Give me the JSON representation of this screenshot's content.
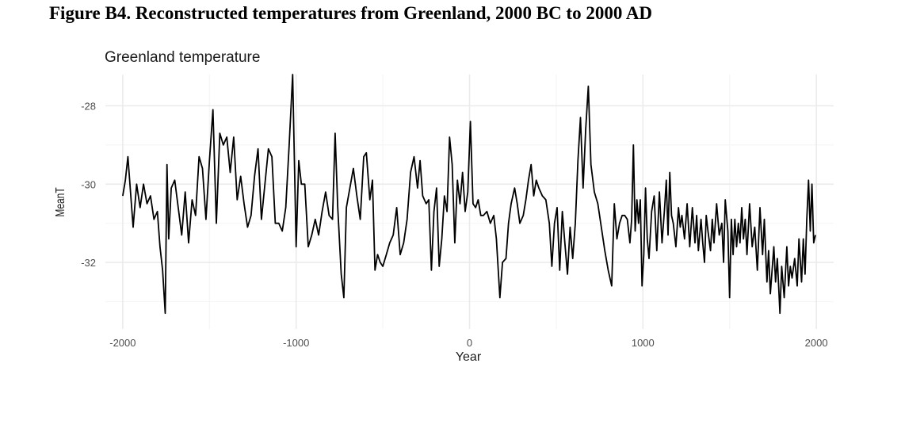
{
  "figure": {
    "caption": "Figure B4. Reconstructed temperatures from Greenland, 2000 BC to 2000 AD"
  },
  "chart_data": {
    "type": "line",
    "title": "Greenland temperature",
    "xlabel": "Year",
    "ylabel": "MeanT",
    "xlim": [
      -2100,
      2100
    ],
    "ylim": [
      -33.7,
      -27.2
    ],
    "x_ticks": [
      -2000,
      -1000,
      0,
      1000,
      2000
    ],
    "x_tick_labels": [
      "-2000",
      "-1000",
      "0",
      "1000",
      "2000"
    ],
    "y_ticks": [
      -28,
      -30,
      -32
    ],
    "y_tick_labels": [
      "-28",
      "-30",
      "-32"
    ],
    "grid": true,
    "legend": "none",
    "colors": {
      "line": "#000000",
      "grid_major": "#ebebeb",
      "grid_minor": "#f4f4f4",
      "background": "#ffffff"
    },
    "series": [
      {
        "name": "MeanT",
        "points": [
          [
            -2000,
            -30.3
          ],
          [
            -1985,
            -29.9
          ],
          [
            -1970,
            -29.3
          ],
          [
            -1955,
            -30.2
          ],
          [
            -1940,
            -31.1
          ],
          [
            -1920,
            -30.0
          ],
          [
            -1900,
            -30.6
          ],
          [
            -1880,
            -30.0
          ],
          [
            -1860,
            -30.5
          ],
          [
            -1840,
            -30.3
          ],
          [
            -1820,
            -30.9
          ],
          [
            -1800,
            -30.7
          ],
          [
            -1785,
            -31.6
          ],
          [
            -1770,
            -32.2
          ],
          [
            -1755,
            -33.3
          ],
          [
            -1745,
            -29.5
          ],
          [
            -1735,
            -31.4
          ],
          [
            -1720,
            -30.1
          ],
          [
            -1700,
            -29.9
          ],
          [
            -1680,
            -30.6
          ],
          [
            -1660,
            -31.3
          ],
          [
            -1640,
            -30.2
          ],
          [
            -1620,
            -31.5
          ],
          [
            -1600,
            -30.4
          ],
          [
            -1580,
            -30.8
          ],
          [
            -1560,
            -29.3
          ],
          [
            -1540,
            -29.6
          ],
          [
            -1520,
            -30.9
          ],
          [
            -1500,
            -29.4
          ],
          [
            -1480,
            -28.1
          ],
          [
            -1460,
            -31.0
          ],
          [
            -1440,
            -28.7
          ],
          [
            -1420,
            -29.0
          ],
          [
            -1400,
            -28.8
          ],
          [
            -1380,
            -29.7
          ],
          [
            -1360,
            -28.8
          ],
          [
            -1340,
            -30.4
          ],
          [
            -1320,
            -29.8
          ],
          [
            -1300,
            -30.5
          ],
          [
            -1280,
            -31.1
          ],
          [
            -1260,
            -30.8
          ],
          [
            -1240,
            -29.8
          ],
          [
            -1220,
            -29.1
          ],
          [
            -1200,
            -30.9
          ],
          [
            -1180,
            -30.0
          ],
          [
            -1160,
            -29.1
          ],
          [
            -1140,
            -29.3
          ],
          [
            -1120,
            -31.0
          ],
          [
            -1100,
            -31.0
          ],
          [
            -1080,
            -31.2
          ],
          [
            -1060,
            -30.6
          ],
          [
            -1040,
            -29.0
          ],
          [
            -1020,
            -27.2
          ],
          [
            -1000,
            -31.6
          ],
          [
            -985,
            -29.4
          ],
          [
            -970,
            -30.0
          ],
          [
            -950,
            -30.0
          ],
          [
            -930,
            -31.6
          ],
          [
            -910,
            -31.3
          ],
          [
            -890,
            -30.9
          ],
          [
            -870,
            -31.3
          ],
          [
            -850,
            -30.7
          ],
          [
            -830,
            -30.2
          ],
          [
            -810,
            -30.8
          ],
          [
            -790,
            -30.9
          ],
          [
            -775,
            -28.7
          ],
          [
            -760,
            -30.6
          ],
          [
            -740,
            -32.3
          ],
          [
            -725,
            -32.9
          ],
          [
            -710,
            -30.6
          ],
          [
            -690,
            -30.1
          ],
          [
            -670,
            -29.6
          ],
          [
            -650,
            -30.3
          ],
          [
            -630,
            -30.9
          ],
          [
            -610,
            -29.3
          ],
          [
            -595,
            -29.2
          ],
          [
            -575,
            -30.4
          ],
          [
            -560,
            -29.9
          ],
          [
            -545,
            -32.2
          ],
          [
            -530,
            -31.8
          ],
          [
            -515,
            -32.0
          ],
          [
            -500,
            -32.1
          ],
          [
            -480,
            -31.8
          ],
          [
            -460,
            -31.5
          ],
          [
            -440,
            -31.3
          ],
          [
            -420,
            -30.6
          ],
          [
            -400,
            -31.8
          ],
          [
            -380,
            -31.5
          ],
          [
            -360,
            -30.9
          ],
          [
            -340,
            -29.7
          ],
          [
            -320,
            -29.3
          ],
          [
            -300,
            -30.1
          ],
          [
            -285,
            -29.4
          ],
          [
            -270,
            -30.3
          ],
          [
            -250,
            -30.5
          ],
          [
            -235,
            -30.4
          ],
          [
            -220,
            -32.2
          ],
          [
            -205,
            -30.7
          ],
          [
            -190,
            -30.1
          ],
          [
            -175,
            -32.1
          ],
          [
            -160,
            -31.4
          ],
          [
            -145,
            -30.3
          ],
          [
            -130,
            -30.7
          ],
          [
            -115,
            -28.8
          ],
          [
            -100,
            -29.5
          ],
          [
            -85,
            -31.5
          ],
          [
            -70,
            -29.9
          ],
          [
            -55,
            -30.5
          ],
          [
            -40,
            -29.7
          ],
          [
            -25,
            -30.7
          ],
          [
            -10,
            -30.2
          ],
          [
            5,
            -28.4
          ],
          [
            20,
            -30.5
          ],
          [
            35,
            -30.6
          ],
          [
            50,
            -30.4
          ],
          [
            65,
            -30.8
          ],
          [
            80,
            -30.8
          ],
          [
            100,
            -30.7
          ],
          [
            120,
            -31.0
          ],
          [
            140,
            -30.8
          ],
          [
            155,
            -31.4
          ],
          [
            175,
            -32.9
          ],
          [
            190,
            -32.0
          ],
          [
            210,
            -31.9
          ],
          [
            225,
            -31.0
          ],
          [
            240,
            -30.5
          ],
          [
            260,
            -30.1
          ],
          [
            275,
            -30.5
          ],
          [
            290,
            -31.0
          ],
          [
            310,
            -30.8
          ],
          [
            325,
            -30.4
          ],
          [
            340,
            -29.9
          ],
          [
            355,
            -29.5
          ],
          [
            370,
            -30.3
          ],
          [
            385,
            -29.9
          ],
          [
            400,
            -30.1
          ],
          [
            420,
            -30.3
          ],
          [
            440,
            -30.4
          ],
          [
            460,
            -31.0
          ],
          [
            475,
            -32.1
          ],
          [
            490,
            -31.0
          ],
          [
            505,
            -30.6
          ],
          [
            520,
            -32.2
          ],
          [
            535,
            -30.7
          ],
          [
            550,
            -31.5
          ],
          [
            565,
            -32.3
          ],
          [
            580,
            -31.1
          ],
          [
            595,
            -31.9
          ],
          [
            610,
            -31.0
          ],
          [
            625,
            -29.4
          ],
          [
            640,
            -28.3
          ],
          [
            655,
            -30.1
          ],
          [
            670,
            -28.6
          ],
          [
            685,
            -27.5
          ],
          [
            700,
            -29.5
          ],
          [
            720,
            -30.2
          ],
          [
            740,
            -30.5
          ],
          [
            760,
            -31.1
          ],
          [
            780,
            -31.7
          ],
          [
            800,
            -32.2
          ],
          [
            820,
            -32.6
          ],
          [
            835,
            -30.5
          ],
          [
            850,
            -31.4
          ],
          [
            865,
            -31.0
          ],
          [
            880,
            -30.8
          ],
          [
            895,
            -30.8
          ],
          [
            910,
            -30.9
          ],
          [
            925,
            -31.5
          ],
          [
            935,
            -30.9
          ],
          [
            945,
            -29.0
          ],
          [
            955,
            -31.2
          ],
          [
            965,
            -30.4
          ],
          [
            975,
            -31.0
          ],
          [
            985,
            -30.4
          ],
          [
            995,
            -32.6
          ],
          [
            1005,
            -31.8
          ],
          [
            1015,
            -30.1
          ],
          [
            1025,
            -31.4
          ],
          [
            1035,
            -31.9
          ],
          [
            1050,
            -30.7
          ],
          [
            1065,
            -30.3
          ],
          [
            1080,
            -31.7
          ],
          [
            1095,
            -30.2
          ],
          [
            1110,
            -31.5
          ],
          [
            1125,
            -30.6
          ],
          [
            1135,
            -29.9
          ],
          [
            1145,
            -31.3
          ],
          [
            1155,
            -29.7
          ],
          [
            1165,
            -30.8
          ],
          [
            1175,
            -31.0
          ],
          [
            1190,
            -31.6
          ],
          [
            1205,
            -30.6
          ],
          [
            1215,
            -31.1
          ],
          [
            1225,
            -30.8
          ],
          [
            1240,
            -31.4
          ],
          [
            1255,
            -30.5
          ],
          [
            1270,
            -31.6
          ],
          [
            1285,
            -30.6
          ],
          [
            1300,
            -31.5
          ],
          [
            1310,
            -30.8
          ],
          [
            1320,
            -31.7
          ],
          [
            1335,
            -30.9
          ],
          [
            1345,
            -31.5
          ],
          [
            1355,
            -32.0
          ],
          [
            1365,
            -30.8
          ],
          [
            1375,
            -31.2
          ],
          [
            1390,
            -31.7
          ],
          [
            1400,
            -30.9
          ],
          [
            1410,
            -31.5
          ],
          [
            1425,
            -30.5
          ],
          [
            1440,
            -31.3
          ],
          [
            1455,
            -31.0
          ],
          [
            1465,
            -32.0
          ],
          [
            1475,
            -30.4
          ],
          [
            1490,
            -31.2
          ],
          [
            1500,
            -32.9
          ],
          [
            1510,
            -30.9
          ],
          [
            1520,
            -31.8
          ],
          [
            1530,
            -30.9
          ],
          [
            1540,
            -31.6
          ],
          [
            1550,
            -31.0
          ],
          [
            1560,
            -31.5
          ],
          [
            1570,
            -30.6
          ],
          [
            1580,
            -31.4
          ],
          [
            1590,
            -30.9
          ],
          [
            1600,
            -31.8
          ],
          [
            1615,
            -30.5
          ],
          [
            1630,
            -31.6
          ],
          [
            1645,
            -31.1
          ],
          [
            1660,
            -32.2
          ],
          [
            1675,
            -30.6
          ],
          [
            1690,
            -31.8
          ],
          [
            1700,
            -30.9
          ],
          [
            1715,
            -32.5
          ],
          [
            1725,
            -31.7
          ],
          [
            1735,
            -32.8
          ],
          [
            1745,
            -32.2
          ],
          [
            1755,
            -31.6
          ],
          [
            1765,
            -32.5
          ],
          [
            1775,
            -31.9
          ],
          [
            1790,
            -33.3
          ],
          [
            1800,
            -32.1
          ],
          [
            1815,
            -32.9
          ],
          [
            1830,
            -31.6
          ],
          [
            1840,
            -32.6
          ],
          [
            1850,
            -32.1
          ],
          [
            1860,
            -32.4
          ],
          [
            1875,
            -31.9
          ],
          [
            1890,
            -32.6
          ],
          [
            1900,
            -31.4
          ],
          [
            1915,
            -32.5
          ],
          [
            1925,
            -31.4
          ],
          [
            1935,
            -32.3
          ],
          [
            1945,
            -30.9
          ],
          [
            1955,
            -29.9
          ],
          [
            1965,
            -31.2
          ],
          [
            1975,
            -30.0
          ],
          [
            1985,
            -31.5
          ],
          [
            1995,
            -31.3
          ]
        ]
      }
    ]
  }
}
